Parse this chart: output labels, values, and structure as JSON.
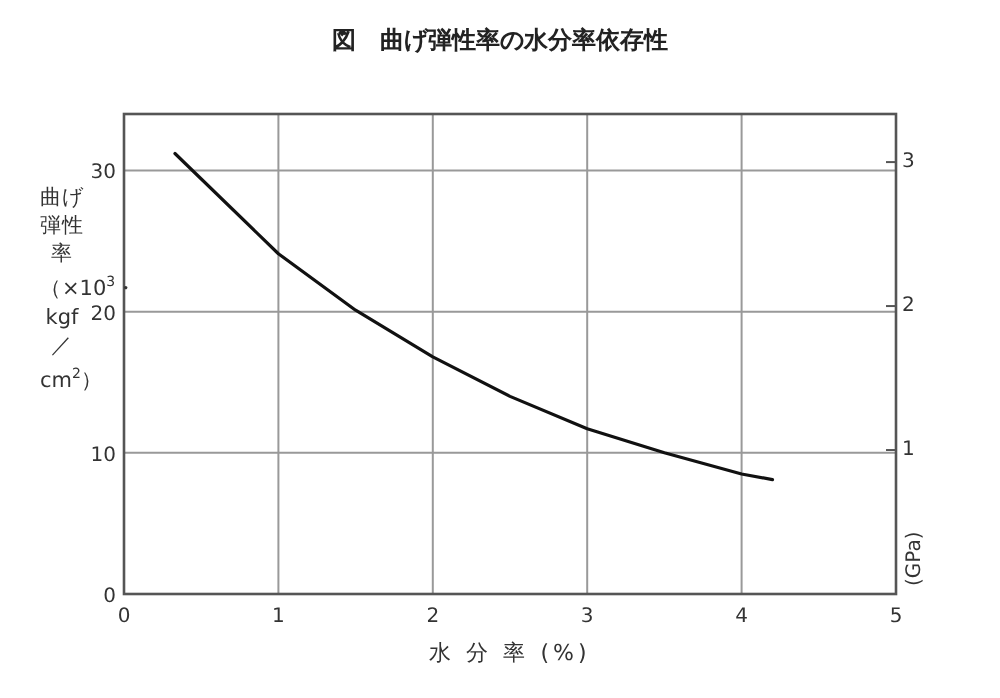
{
  "chart_data": {
    "type": "line",
    "title": "図　曲げ弾性率の水分率依存性",
    "xlabel": "水 分 率 (%)",
    "ylabel": "曲げ弾性率（×10$^{3}$・kgf／cm$^{2}$）",
    "y2label": "(GPa)",
    "x": [
      0.33,
      1,
      1.5,
      2,
      2.5,
      3,
      3.5,
      4,
      4.2
    ],
    "series": [
      {
        "color": "#111111",
        "values": [
          31.2,
          24.1,
          20.1,
          16.8,
          14.0,
          11.7,
          10.0,
          8.5,
          8.1
        ]
      }
    ],
    "xlim": [
      0,
      5
    ],
    "xticks": [
      0,
      1,
      2,
      3,
      4,
      5
    ],
    "ylim": [
      0,
      34
    ],
    "yticks": [
      0,
      10,
      20,
      30
    ],
    "y2lim": [
      0,
      3.334
    ],
    "y2ticks": [
      1,
      2,
      3
    ],
    "grid": true,
    "marker": "none",
    "line_style": "solid"
  }
}
